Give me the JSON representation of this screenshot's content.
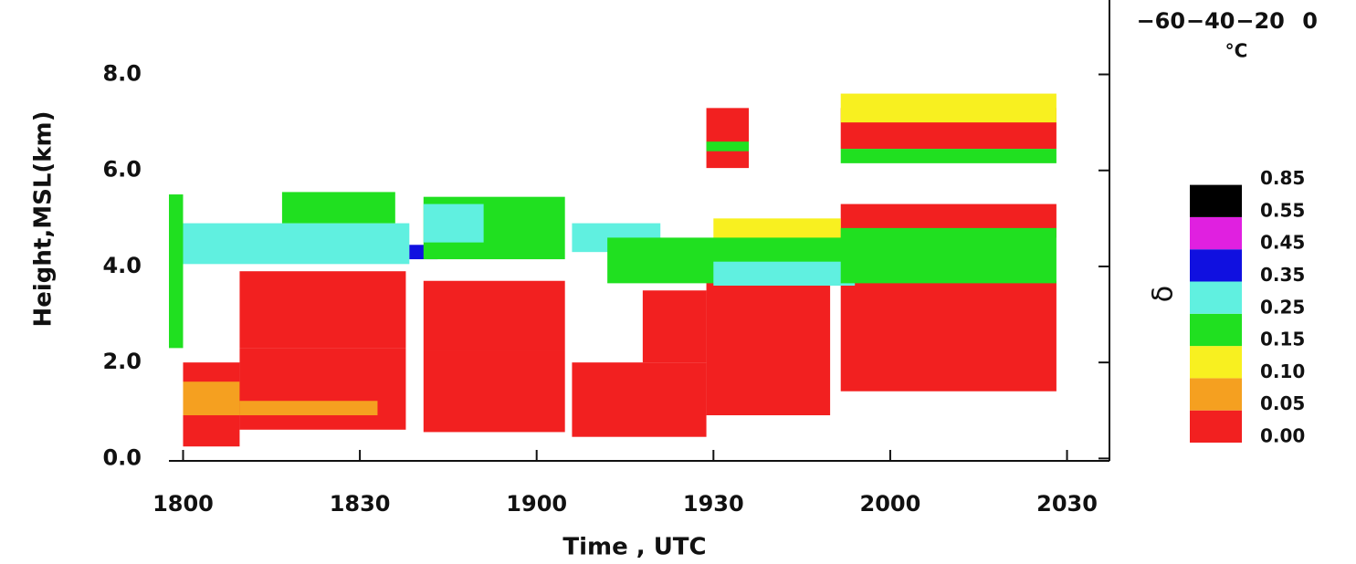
{
  "chart_data": {
    "type": "heatmap",
    "ylabel": "Height,MSL(km)",
    "xlabel": "Time , UTC",
    "xlim": [
      17.96,
      20.62
    ],
    "xticks": [
      {
        "value": 18.0,
        "label": "1800"
      },
      {
        "value": 18.5,
        "label": "1830"
      },
      {
        "value": 19.0,
        "label": "1900"
      },
      {
        "value": 19.5,
        "label": "1930"
      },
      {
        "value": 20.0,
        "label": "2000"
      },
      {
        "value": 20.5,
        "label": "2030"
      }
    ],
    "ylim": [
      -0.05,
      9.55
    ],
    "yticks": [
      {
        "value": 0,
        "label": "0.0"
      },
      {
        "value": 2,
        "label": "2.0"
      },
      {
        "value": 4,
        "label": "4.0"
      },
      {
        "value": 6,
        "label": "6.0"
      },
      {
        "value": 8,
        "label": "8.0"
      }
    ],
    "colorbar": {
      "label": "δ",
      "bins": [
        {
          "value": 0,
          "label": "0.00"
        },
        {
          "value": 0.05,
          "label": "0.05"
        },
        {
          "value": 0.1,
          "label": "0.10"
        },
        {
          "value": 0.15,
          "label": "0.15"
        },
        {
          "value": 0.25,
          "label": "0.25"
        },
        {
          "value": 0.35,
          "label": "0.35"
        },
        {
          "value": 0.45,
          "label": "0.45"
        },
        {
          "value": 0.55,
          "label": "0.55"
        },
        {
          "value": 0.85,
          "label": "0.85"
        }
      ],
      "colors": [
        "#f22020",
        "#f5a020",
        "#f8f020",
        "#20e020",
        "#60f0e0",
        "#1010e0",
        "#e020e0",
        "#000000"
      ]
    },
    "temperature_axis": {
      "unit": "°C",
      "xlim": [
        -66,
        2
      ],
      "ticks": [
        {
          "value": -60,
          "label": "−60"
        },
        {
          "value": -40,
          "label": "−40"
        },
        {
          "value": -20,
          "label": "−20"
        },
        0
      ]
    },
    "regions": [
      {
        "t": [
          17.96,
          18.0
        ],
        "h": [
          2.3,
          5.5
        ],
        "value": 0.2
      },
      {
        "t": [
          18.0,
          18.16
        ],
        "h": [
          0.25,
          2.0
        ],
        "value": 0.02
      },
      {
        "t": [
          18.0,
          18.16
        ],
        "h": [
          0.9,
          1.6
        ],
        "value": 0.07
      },
      {
        "t": [
          18.16,
          18.63
        ],
        "h": [
          0.6,
          2.3
        ],
        "value": 0.02
      },
      {
        "t": [
          18.16,
          18.63
        ],
        "h": [
          2.3,
          3.9
        ],
        "value": 0.02
      },
      {
        "t": [
          18.16,
          18.55
        ],
        "h": [
          0.9,
          1.2
        ],
        "value": 0.07
      },
      {
        "t": [
          18.68,
          19.08
        ],
        "h": [
          0.55,
          2.25
        ],
        "value": 0.02
      },
      {
        "t": [
          18.68,
          19.08
        ],
        "h": [
          2.25,
          3.7
        ],
        "value": 0.02
      },
      {
        "t": [
          19.1,
          19.48
        ],
        "h": [
          0.45,
          2.0
        ],
        "value": 0.02
      },
      {
        "t": [
          19.3,
          19.48
        ],
        "h": [
          2.0,
          3.5
        ],
        "value": 0.02
      },
      {
        "t": [
          19.48,
          19.83
        ],
        "h": [
          0.9,
          3.9
        ],
        "value": 0.02
      },
      {
        "t": [
          19.86,
          20.47
        ],
        "h": [
          1.4,
          3.7
        ],
        "value": 0.02
      },
      {
        "t": [
          19.86,
          20.47
        ],
        "h": [
          4.6,
          5.3
        ],
        "value": 0.02
      },
      {
        "t": [
          19.5,
          19.86
        ],
        "h": [
          4.2,
          5.0
        ],
        "value": 0.12
      },
      {
        "t": [
          18.0,
          18.64
        ],
        "h": [
          4.05,
          4.9
        ],
        "value": 0.3
      },
      {
        "t": [
          18.28,
          18.6
        ],
        "h": [
          4.9,
          5.55
        ],
        "value": 0.2
      },
      {
        "t": [
          18.64,
          18.72
        ],
        "h": [
          4.15,
          4.45
        ],
        "value": 0.4
      },
      {
        "t": [
          18.68,
          19.08
        ],
        "h": [
          4.15,
          5.45
        ],
        "value": 0.2
      },
      {
        "t": [
          18.68,
          18.85
        ],
        "h": [
          4.5,
          5.3
        ],
        "value": 0.3
      },
      {
        "t": [
          19.1,
          19.35
        ],
        "h": [
          4.3,
          4.9
        ],
        "value": 0.3
      },
      {
        "t": [
          19.2,
          19.9
        ],
        "h": [
          3.65,
          4.6
        ],
        "value": 0.2
      },
      {
        "t": [
          19.5,
          19.9
        ],
        "h": [
          3.6,
          4.1
        ],
        "value": 0.3
      },
      {
        "t": [
          19.86,
          20.47
        ],
        "h": [
          3.65,
          4.8
        ],
        "value": 0.2
      },
      {
        "t": [
          19.48,
          19.6
        ],
        "h": [
          6.05,
          7.3
        ],
        "value": 0.02
      },
      {
        "t": [
          19.48,
          19.6
        ],
        "h": [
          6.4,
          6.6
        ],
        "value": 0.2
      },
      {
        "t": [
          19.86,
          20.47
        ],
        "h": [
          6.45,
          7.3
        ],
        "value": 0.02
      },
      {
        "t": [
          19.86,
          20.47
        ],
        "h": [
          6.15,
          6.45
        ],
        "value": 0.2
      },
      {
        "t": [
          19.86,
          20.47
        ],
        "h": [
          7.0,
          7.6
        ],
        "value": 0.12
      }
    ]
  }
}
